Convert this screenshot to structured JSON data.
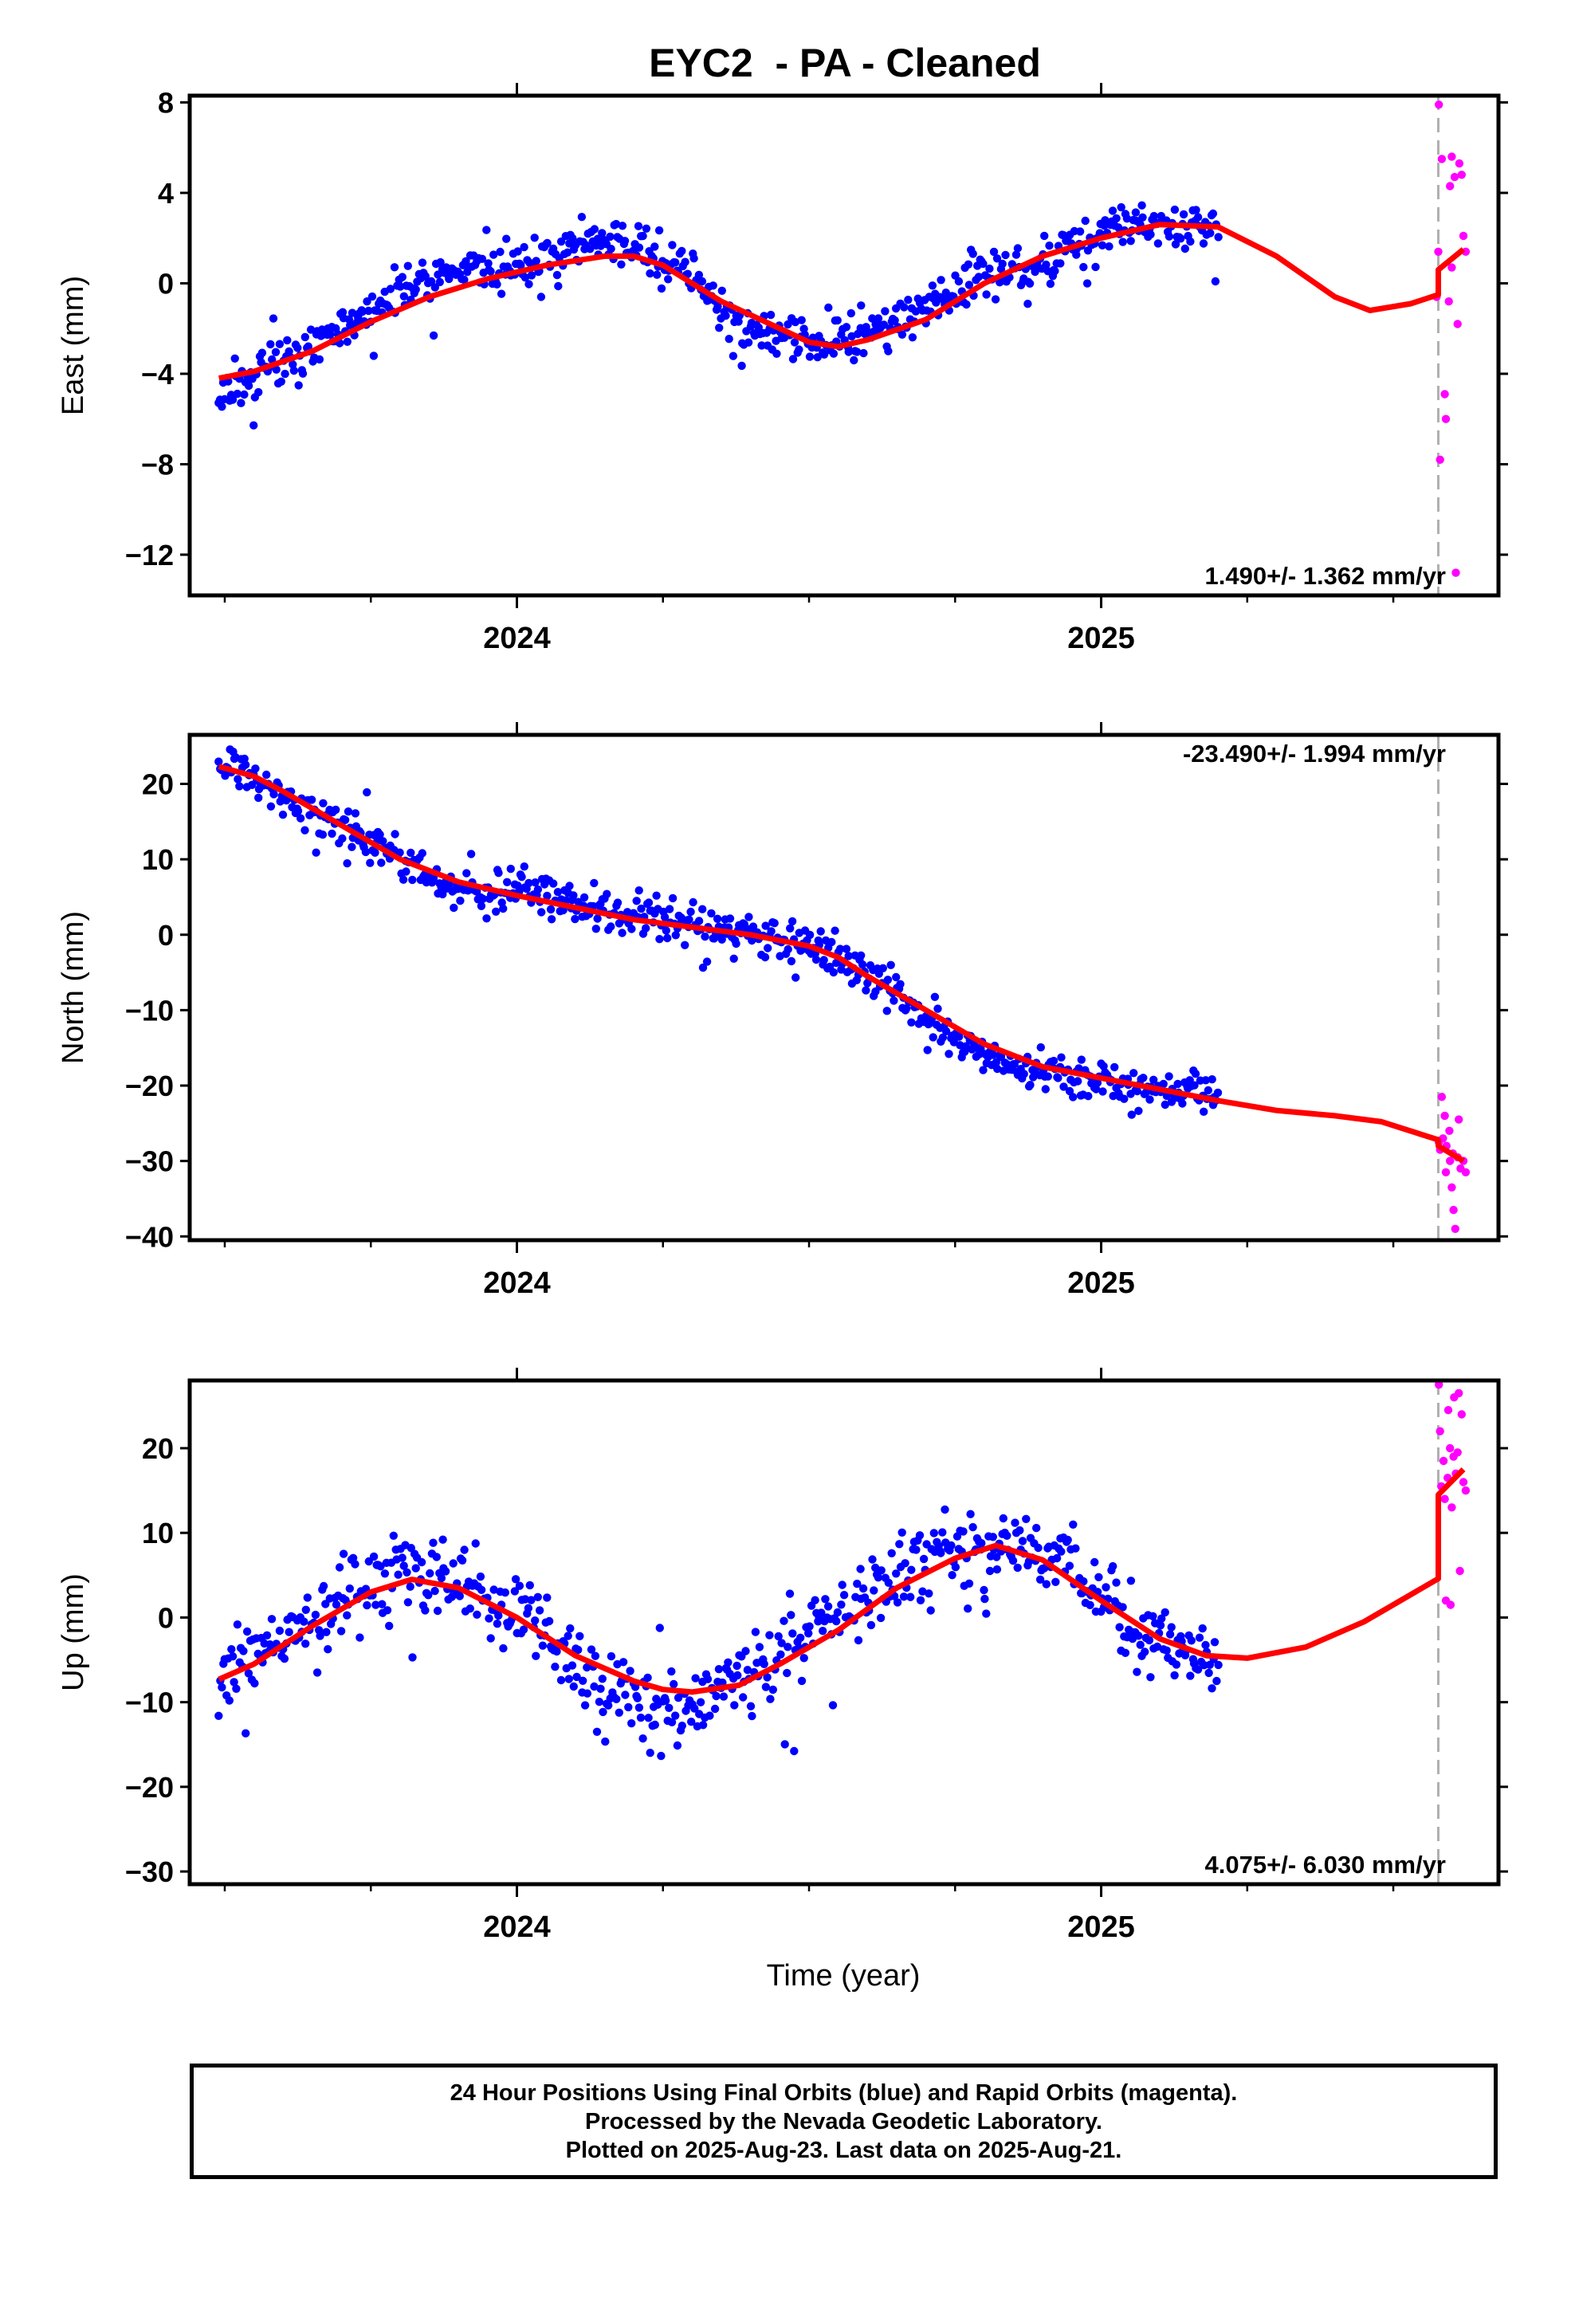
{
  "title": "EYC2  - PA - Cleaned",
  "xlabel": "Time (year)",
  "footer": {
    "line1": "24 Hour Positions Using Final Orbits (blue) and Rapid Orbits (magenta).",
    "line2": "Processed by the Nevada Geodetic Laboratory.",
    "line3": "Plotted on 2025-Aug-23. Last data on 2025-Aug-21."
  },
  "colors": {
    "final": "#0000ff",
    "rapid": "#ff00ff",
    "model": "#ff0000",
    "boundary": "#b0b0b0"
  },
  "chart_data": [
    {
      "type": "scatter",
      "component": "east",
      "ylabel": "East (mm)",
      "ylim": [
        -13.8,
        8.3
      ],
      "xlim": [
        2023.44,
        2025.68
      ],
      "yticks": [
        8,
        4,
        0,
        -4,
        -8,
        -12
      ],
      "ytick_labels": [
        "8",
        "4",
        "0",
        "−4",
        "−8",
        "−12"
      ],
      "xticks": [
        2024,
        2025
      ],
      "xtick_labels": [
        "2024",
        "2025"
      ],
      "x_minor_ticks": [
        2023.5,
        2023.75,
        2024.25,
        2024.5,
        2024.75,
        2025.25,
        2025.5
      ],
      "rate_label": "1.490+/- 1.362 mm/yr",
      "rate_position": "bottom-right",
      "rapid_boundary": 2025.577,
      "model_curve": [
        [
          2023.49,
          -4.2
        ],
        [
          2023.55,
          -3.9
        ],
        [
          2023.65,
          -3.0
        ],
        [
          2023.75,
          -1.7
        ],
        [
          2023.85,
          -0.6
        ],
        [
          2023.95,
          0.2
        ],
        [
          2024.05,
          0.8
        ],
        [
          2024.15,
          1.2
        ],
        [
          2024.2,
          1.2
        ],
        [
          2024.25,
          0.8
        ],
        [
          2024.35,
          -0.8
        ],
        [
          2024.45,
          -2.0
        ],
        [
          2024.5,
          -2.6
        ],
        [
          2024.55,
          -2.8
        ],
        [
          2024.6,
          -2.5
        ],
        [
          2024.7,
          -1.6
        ],
        [
          2024.8,
          0.0
        ],
        [
          2024.9,
          1.2
        ],
        [
          2025.0,
          2.0
        ],
        [
          2025.1,
          2.6
        ],
        [
          2025.2,
          2.5
        ],
        [
          2025.3,
          1.2
        ],
        [
          2025.4,
          -0.6
        ],
        [
          2025.46,
          -1.2
        ],
        [
          2025.53,
          -0.9
        ],
        [
          2025.577,
          -0.5
        ],
        [
          2025.577,
          0.6
        ],
        [
          2025.62,
          1.5
        ]
      ],
      "final_series": {
        "name": "Final Orbits",
        "x_start": 2023.49,
        "x_end": 2025.2,
        "n": 640,
        "seed": 11,
        "anchors": [
          [
            2023.49,
            -4.8
          ],
          [
            2023.6,
            -3.6
          ],
          [
            2023.7,
            -2.2
          ],
          [
            2023.8,
            -0.3
          ],
          [
            2023.9,
            0.7
          ],
          [
            2024.0,
            0.6
          ],
          [
            2024.1,
            1.6
          ],
          [
            2024.15,
            1.8
          ],
          [
            2024.2,
            1.6
          ],
          [
            2024.3,
            0.3
          ],
          [
            2024.38,
            -2.0
          ],
          [
            2024.45,
            -2.4
          ],
          [
            2024.5,
            -2.5
          ],
          [
            2024.55,
            -2.4
          ],
          [
            2024.62,
            -2.0
          ],
          [
            2024.7,
            -0.9
          ],
          [
            2024.8,
            0.2
          ],
          [
            2024.9,
            1.0
          ],
          [
            2025.0,
            2.2
          ],
          [
            2025.1,
            2.8
          ],
          [
            2025.2,
            2.4
          ]
        ],
        "spread": 1.35
      },
      "rapid_points": [
        [
          2025.578,
          7.9
        ],
        [
          2025.583,
          5.5
        ],
        [
          2025.588,
          -4.9
        ],
        [
          2025.59,
          -6.0
        ],
        [
          2025.597,
          4.3
        ],
        [
          2025.6,
          5.6
        ],
        [
          2025.605,
          4.7
        ],
        [
          2025.61,
          -1.8
        ],
        [
          2025.613,
          5.3
        ],
        [
          2025.617,
          4.8
        ],
        [
          2025.62,
          2.1
        ],
        [
          2025.624,
          1.4
        ],
        [
          2025.58,
          -7.8
        ],
        [
          2025.574,
          -0.6
        ],
        [
          2025.577,
          1.4
        ],
        [
          2025.607,
          -12.8
        ],
        [
          2025.6,
          0.7
        ],
        [
          2025.595,
          -0.8
        ]
      ]
    },
    {
      "type": "scatter",
      "component": "north",
      "ylabel": "North (mm)",
      "ylim": [
        -40.5,
        26.5
      ],
      "xlim": [
        2023.44,
        2025.68
      ],
      "yticks": [
        20,
        10,
        0,
        -10,
        -20,
        -30,
        -40
      ],
      "ytick_labels": [
        "20",
        "10",
        "0",
        "−10",
        "−20",
        "−30",
        "−40"
      ],
      "xticks": [
        2024,
        2025
      ],
      "xtick_labels": [
        "2024",
        "2025"
      ],
      "x_minor_ticks": [
        2023.5,
        2023.75,
        2024.25,
        2024.5,
        2024.75,
        2025.25,
        2025.5
      ],
      "rate_label": "-23.490+/- 1.994 mm/yr",
      "rate_position": "top-right",
      "rapid_boundary": 2025.577,
      "model_curve": [
        [
          2023.49,
          22.3
        ],
        [
          2023.55,
          21.0
        ],
        [
          2023.6,
          19.0
        ],
        [
          2023.7,
          14.5
        ],
        [
          2023.8,
          10.0
        ],
        [
          2023.9,
          7.0
        ],
        [
          2024.0,
          5.2
        ],
        [
          2024.1,
          3.6
        ],
        [
          2024.2,
          2.0
        ],
        [
          2024.3,
          1.0
        ],
        [
          2024.4,
          0.0
        ],
        [
          2024.5,
          -1.5
        ],
        [
          2024.55,
          -3.0
        ],
        [
          2024.6,
          -5.5
        ],
        [
          2024.7,
          -10.0
        ],
        [
          2024.8,
          -14.5
        ],
        [
          2024.9,
          -17.5
        ],
        [
          2025.0,
          -19.0
        ],
        [
          2025.1,
          -20.5
        ],
        [
          2025.2,
          -22.0
        ],
        [
          2025.3,
          -23.3
        ],
        [
          2025.4,
          -24.0
        ],
        [
          2025.48,
          -24.8
        ],
        [
          2025.577,
          -27.2
        ],
        [
          2025.577,
          -28.0
        ],
        [
          2025.62,
          -30.0
        ]
      ],
      "final_series": {
        "name": "Final Orbits",
        "x_start": 2023.49,
        "x_end": 2025.2,
        "n": 640,
        "seed": 23,
        "anchors": [
          [
            2023.49,
            22.5
          ],
          [
            2023.55,
            21.5
          ],
          [
            2023.65,
            16.0
          ],
          [
            2023.75,
            12.0
          ],
          [
            2023.85,
            7.5
          ],
          [
            2023.95,
            5.5
          ],
          [
            2024.0,
            6.5
          ],
          [
            2024.1,
            4.0
          ],
          [
            2024.2,
            2.5
          ],
          [
            2024.3,
            1.5
          ],
          [
            2024.4,
            0.5
          ],
          [
            2024.5,
            -1.0
          ],
          [
            2024.58,
            -4.5
          ],
          [
            2024.65,
            -8.5
          ],
          [
            2024.75,
            -13.5
          ],
          [
            2024.85,
            -17.5
          ],
          [
            2024.95,
            -19.0
          ],
          [
            2025.05,
            -20.0
          ],
          [
            2025.2,
            -21.0
          ]
        ],
        "spread": 3.4
      },
      "rapid_points": [
        [
          2025.578,
          -27.5
        ],
        [
          2025.583,
          -21.5
        ],
        [
          2025.588,
          -24.0
        ],
        [
          2025.591,
          -28.0
        ],
        [
          2025.596,
          -26.0
        ],
        [
          2025.6,
          -33.5
        ],
        [
          2025.603,
          -36.5
        ],
        [
          2025.606,
          -39.0
        ],
        [
          2025.61,
          -29.5
        ],
        [
          2025.615,
          -31.0
        ],
        [
          2025.62,
          -30.0
        ],
        [
          2025.624,
          -31.5
        ],
        [
          2025.58,
          -28.5
        ],
        [
          2025.585,
          -27.0
        ],
        [
          2025.612,
          -24.5
        ],
        [
          2025.59,
          -31.5
        ],
        [
          2025.597,
          -30.0
        ],
        [
          2025.602,
          -29.0
        ]
      ]
    },
    {
      "type": "scatter",
      "component": "up",
      "ylabel": "Up (mm)",
      "ylim": [
        -31.5,
        28.0
      ],
      "xlim": [
        2023.44,
        2025.68
      ],
      "yticks": [
        20,
        10,
        0,
        -10,
        -20,
        -30
      ],
      "ytick_labels": [
        "20",
        "10",
        "0",
        "−10",
        "−20",
        "−30"
      ],
      "xticks": [
        2024,
        2025
      ],
      "xtick_labels": [
        "2024",
        "2025"
      ],
      "x_minor_ticks": [
        2023.5,
        2023.75,
        2024.25,
        2024.5,
        2024.75,
        2025.25,
        2025.5
      ],
      "rate_label": "4.075+/- 6.030 mm/yr",
      "rate_position": "bottom-right",
      "rapid_boundary": 2025.577,
      "model_curve": [
        [
          2023.49,
          -7.3
        ],
        [
          2023.55,
          -5.5
        ],
        [
          2023.65,
          -1.0
        ],
        [
          2023.75,
          3.0
        ],
        [
          2023.82,
          4.5
        ],
        [
          2023.9,
          3.5
        ],
        [
          2024.0,
          0.0
        ],
        [
          2024.1,
          -4.5
        ],
        [
          2024.2,
          -7.5
        ],
        [
          2024.25,
          -8.5
        ],
        [
          2024.3,
          -8.8
        ],
        [
          2024.38,
          -8.0
        ],
        [
          2024.45,
          -5.5
        ],
        [
          2024.55,
          -1.5
        ],
        [
          2024.65,
          3.5
        ],
        [
          2024.75,
          7.0
        ],
        [
          2024.82,
          8.5
        ],
        [
          2024.9,
          6.8
        ],
        [
          2025.0,
          2.0
        ],
        [
          2025.1,
          -2.5
        ],
        [
          2025.18,
          -4.5
        ],
        [
          2025.25,
          -4.8
        ],
        [
          2025.35,
          -3.5
        ],
        [
          2025.45,
          -0.5
        ],
        [
          2025.577,
          4.6
        ],
        [
          2025.577,
          14.5
        ],
        [
          2025.62,
          17.5
        ]
      ],
      "final_series": {
        "name": "Final Orbits",
        "x_start": 2023.49,
        "x_end": 2025.2,
        "n": 640,
        "seed": 37,
        "anchors": [
          [
            2023.49,
            -6.5
          ],
          [
            2023.6,
            -3.0
          ],
          [
            2023.7,
            1.5
          ],
          [
            2023.8,
            5.0
          ],
          [
            2023.9,
            4.5
          ],
          [
            2024.0,
            1.0
          ],
          [
            2024.1,
            -6.0
          ],
          [
            2024.2,
            -9.5
          ],
          [
            2024.28,
            -11.0
          ],
          [
            2024.38,
            -7.0
          ],
          [
            2024.45,
            -4.5
          ],
          [
            2024.55,
            0.0
          ],
          [
            2024.65,
            5.0
          ],
          [
            2024.75,
            8.0
          ],
          [
            2024.85,
            9.0
          ],
          [
            2024.95,
            6.0
          ],
          [
            2025.05,
            -1.0
          ],
          [
            2025.12,
            -3.5
          ],
          [
            2025.2,
            -4.5
          ]
        ],
        "spread": 6.0
      },
      "rapid_points": [
        [
          2025.578,
          27.5
        ],
        [
          2025.582,
          15.5
        ],
        [
          2025.586,
          18.5
        ],
        [
          2025.59,
          2.0
        ],
        [
          2025.594,
          24.5
        ],
        [
          2025.597,
          20.0
        ],
        [
          2025.6,
          13.0
        ],
        [
          2025.604,
          26.0
        ],
        [
          2025.607,
          17.0
        ],
        [
          2025.61,
          19.5
        ],
        [
          2025.614,
          5.5
        ],
        [
          2025.617,
          24.0
        ],
        [
          2025.62,
          16.0
        ],
        [
          2025.624,
          15.0
        ],
        [
          2025.58,
          22.0
        ],
        [
          2025.588,
          14.0
        ],
        [
          2025.598,
          1.5
        ],
        [
          2025.612,
          26.5
        ],
        [
          2025.603,
          19.0
        ],
        [
          2025.593,
          16.5
        ]
      ]
    }
  ]
}
